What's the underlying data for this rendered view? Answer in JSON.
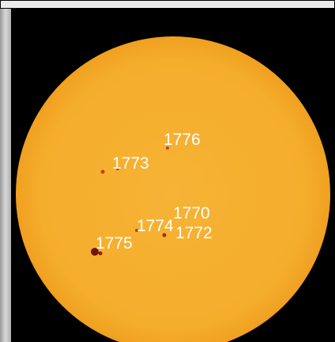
{
  "regions": [
    {
      "label": "1776"
    },
    {
      "label": "1773"
    },
    {
      "label": "1770"
    },
    {
      "label": "1774"
    },
    {
      "label": "1772"
    },
    {
      "label": "1775"
    }
  ]
}
